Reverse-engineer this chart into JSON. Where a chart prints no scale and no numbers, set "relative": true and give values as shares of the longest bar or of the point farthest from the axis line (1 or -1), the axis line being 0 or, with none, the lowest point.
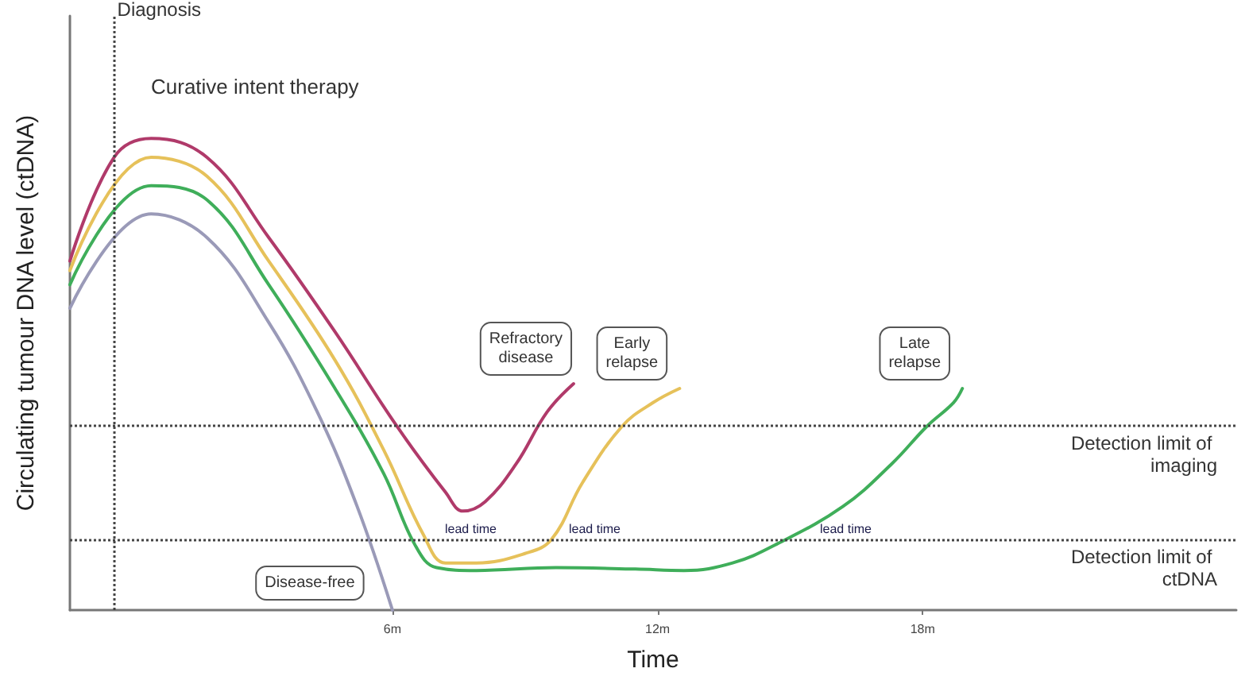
{
  "chart_data": {
    "type": "line",
    "relative": true,
    "xlabel": "Time",
    "ylabel": "Circulating tumour DNA level (ctDNA)",
    "xlim": [
      -1.3,
      25.1
    ],
    "xticks": [
      {
        "value": 6,
        "label": "6m"
      },
      {
        "value": 12,
        "label": "12m"
      },
      {
        "value": 18,
        "label": "18m"
      }
    ],
    "grid": false,
    "marker": "none",
    "line_style": "solid",
    "series": [
      {
        "name": "Refractory disease",
        "color": "#b03a6a",
        "x": [
          -1.3,
          -0.3,
          0.54,
          1.8,
          3.2,
          4.7,
          6.1,
          7.2,
          7.6,
          8.1,
          8.8,
          9.5,
          10.1
        ],
        "values": [
          0.74,
          0.96,
          1,
          0.96,
          0.79,
          0.59,
          0.39,
          0.25,
          0.21,
          0.23,
          0.31,
          0.42,
          0.48
        ]
      },
      {
        "name": "Early relapse",
        "color": "#e6c15a",
        "x": [
          -1.3,
          0.54,
          1.8,
          3.2,
          4.7,
          5.8,
          6.7,
          7.2,
          7.9,
          9.0,
          9.6,
          10.3,
          11.2,
          11.9,
          12.5
        ],
        "values": [
          0.72,
          0.96,
          0.92,
          0.74,
          0.53,
          0.34,
          0.16,
          0.1,
          0.1,
          0.12,
          0.15,
          0.27,
          0.39,
          0.44,
          0.47
        ]
      },
      {
        "name": "Late relapse",
        "color": "#3fae5a",
        "x": [
          -1.3,
          0.54,
          1.8,
          3.2,
          4.7,
          5.8,
          6.5,
          7.0,
          7.9,
          9.7,
          11.5,
          12.6,
          13.7,
          14.7,
          16.2,
          17.3,
          18.1,
          18.7,
          18.9
        ],
        "values": [
          0.69,
          0.9,
          0.87,
          0.69,
          0.47,
          0.29,
          0.14,
          0.09,
          0.084,
          0.09,
          0.087,
          0.084,
          0.1,
          0.14,
          0.22,
          0.31,
          0.39,
          0.44,
          0.47
        ]
      },
      {
        "name": "Disease-free",
        "color": "#9a9ab8",
        "x": [
          -1.3,
          0.54,
          1.8,
          3.2,
          4.3,
          5.2,
          6.0
        ],
        "values": [
          0.64,
          0.84,
          0.79,
          0.61,
          0.42,
          0.22,
          0
        ]
      }
    ],
    "ref_lines": [
      {
        "axis": "x",
        "value": -0.3,
        "label": "Diagnosis",
        "line_style": "dotted"
      },
      {
        "axis": "y",
        "value": 0.39,
        "label": "Detection limit of imaging",
        "line_style": "dotted"
      },
      {
        "axis": "y",
        "value": 0.15,
        "label": "Detection limit of ctDNA",
        "line_style": "dotted"
      }
    ],
    "annotations": [
      "Curative intent therapy",
      "lead time",
      "lead time",
      "lead time"
    ]
  }
}
